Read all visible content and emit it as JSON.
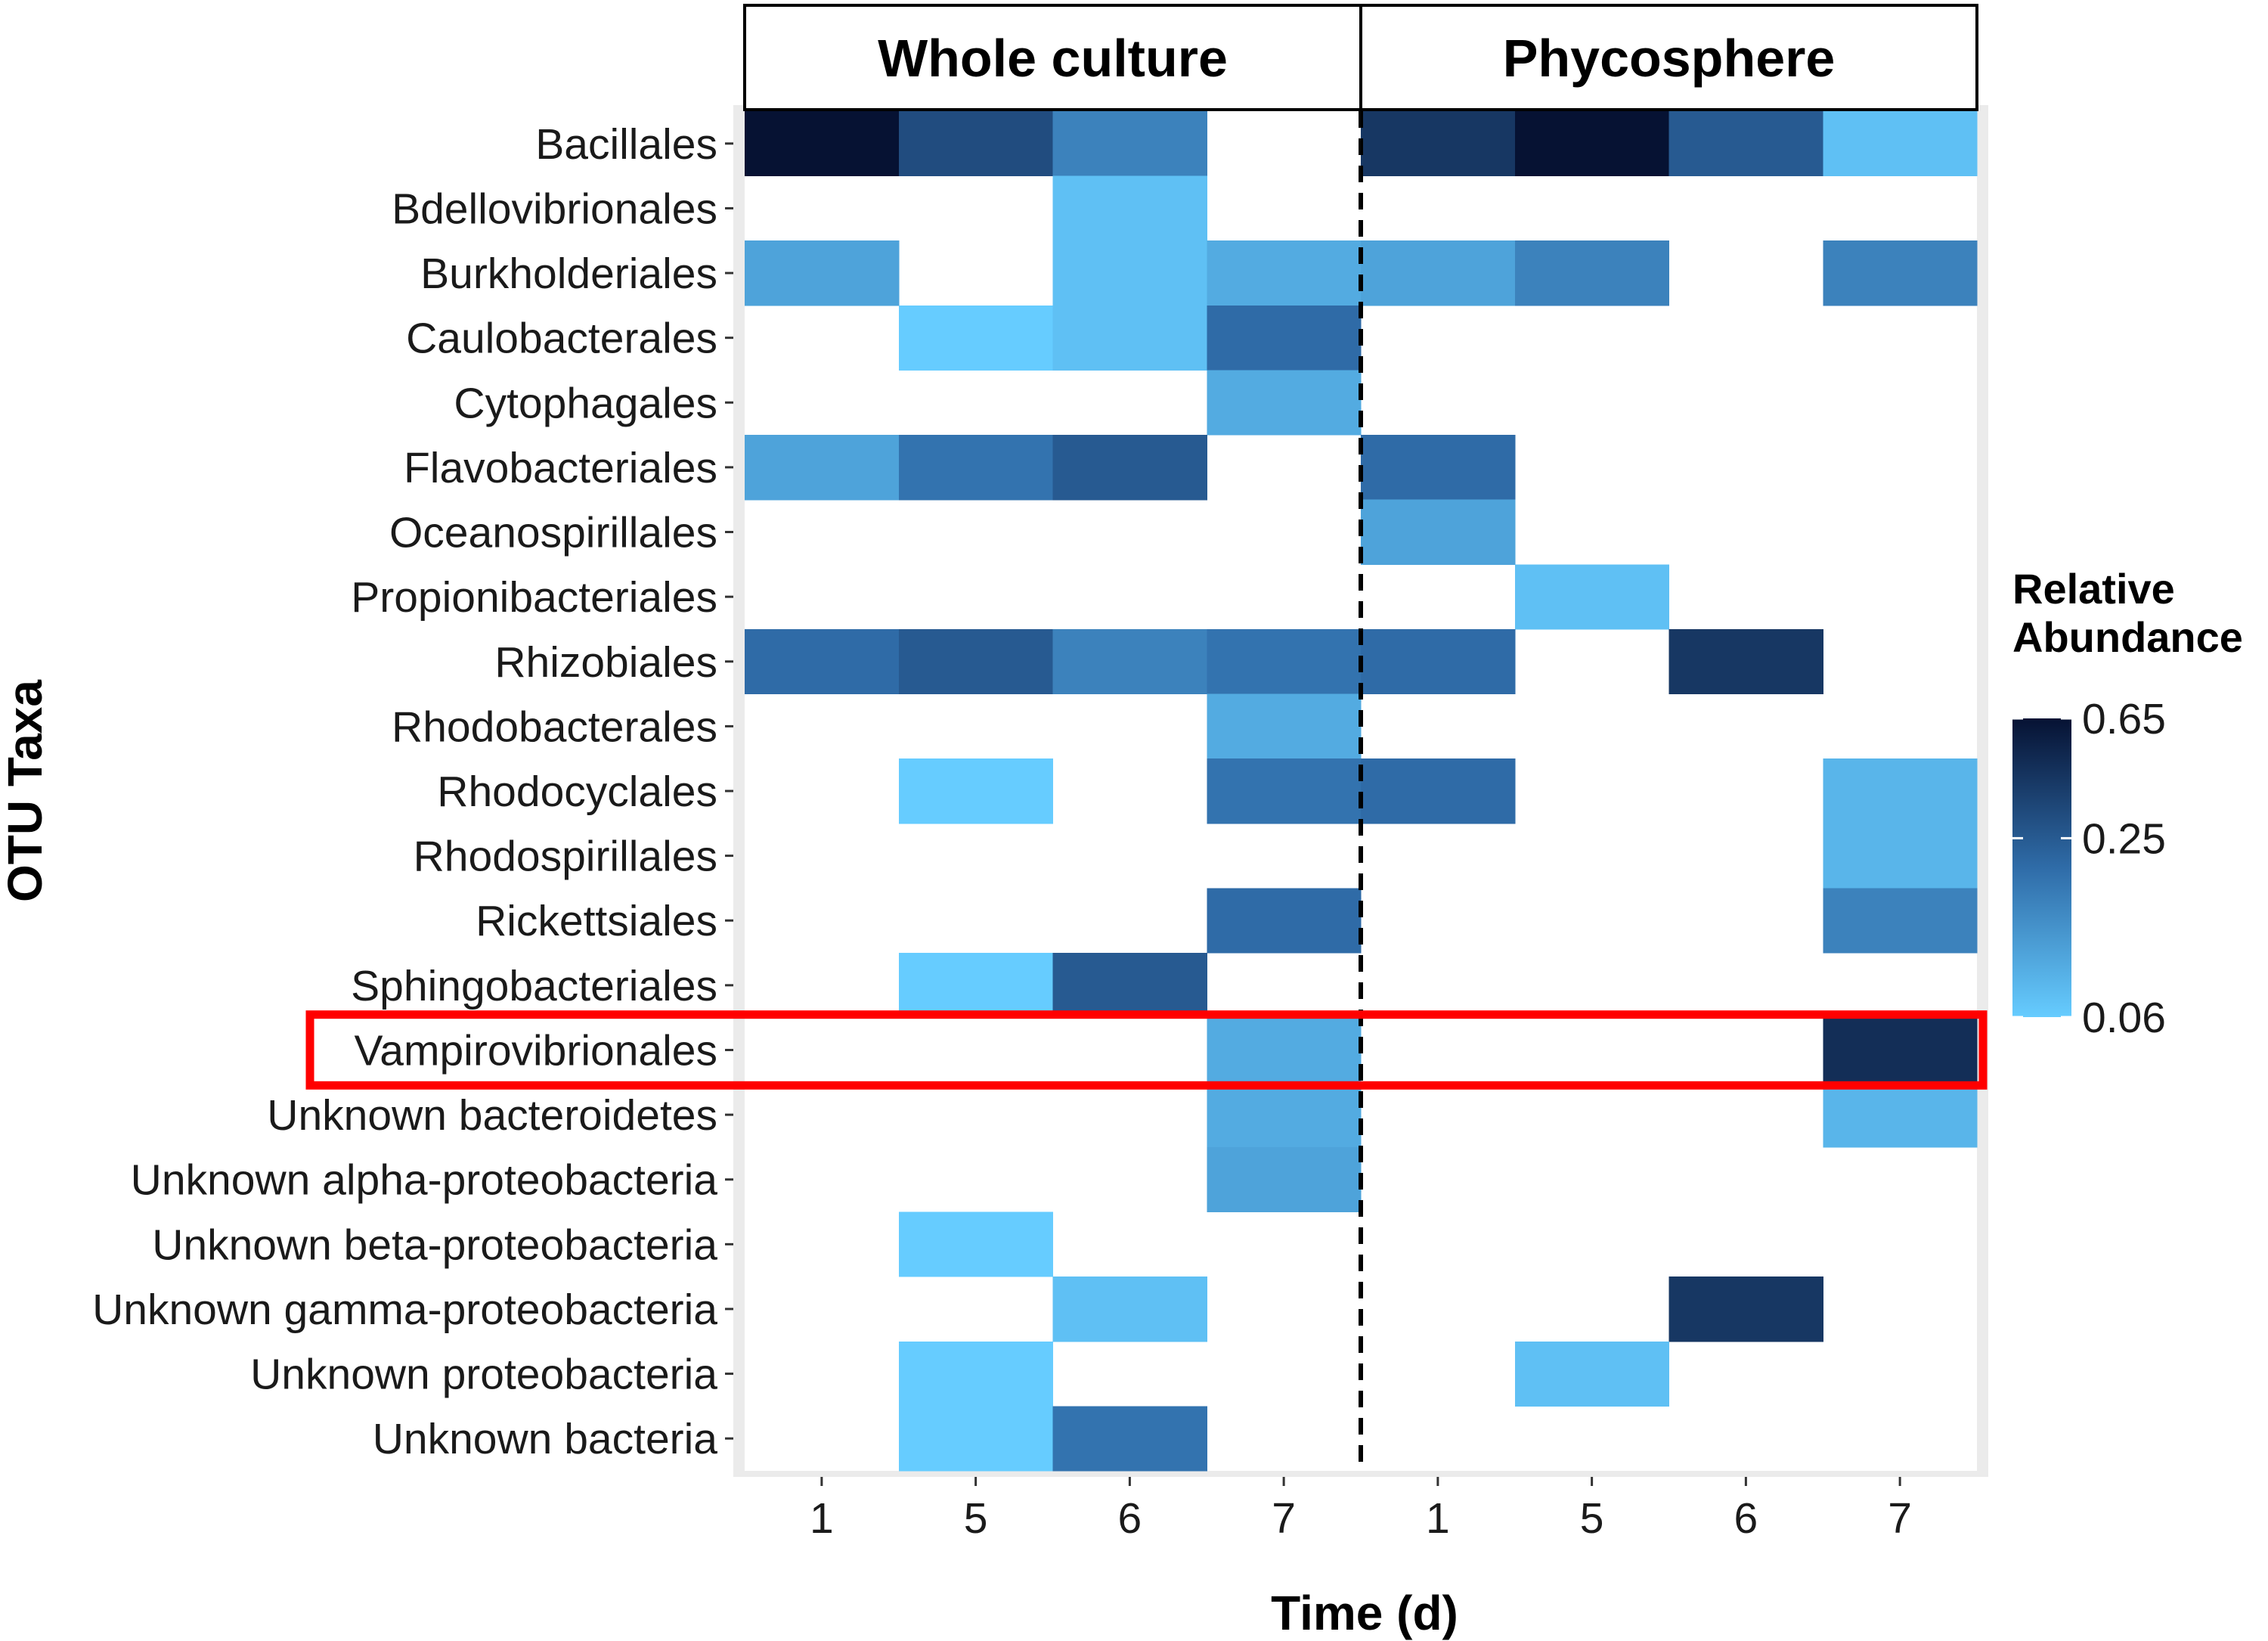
{
  "chart_data": {
    "type": "heatmap",
    "title": "",
    "panels": [
      "Whole culture",
      "Phycosphere"
    ],
    "xlabel": "Time (d)",
    "ylabel": "OTU Taxa",
    "x_ticks": [
      "1",
      "5",
      "6",
      "7",
      "1",
      "5",
      "6",
      "7"
    ],
    "rows": [
      "Bacillales",
      "Bdellovibrionales",
      "Burkholderiales",
      "Caulobacterales",
      "Cytophagales",
      "Flavobacteriales",
      "Oceanospirillales",
      "Propionibacteriales",
      "Rhizobiales",
      "Rhodobacterales",
      "Rhodocyclales",
      "Rhodospirillales",
      "Rickettsiales",
      "Sphingobacteriales",
      "Vampirovibrionales",
      "Unknown bacteroidetes",
      "Unknown alpha-proteobacteria",
      "Unknown beta-proteobacteria",
      "Unknown gamma-proteobacteria",
      "Unknown proteobacteria",
      "Unknown bacteria"
    ],
    "values": [
      [
        0.65,
        0.3,
        0.15,
        null,
        0.4,
        0.65,
        0.25,
        0.07
      ],
      [
        null,
        null,
        0.07,
        null,
        null,
        null,
        null,
        null
      ],
      [
        0.1,
        null,
        0.07,
        0.09,
        0.1,
        0.15,
        null,
        0.15
      ],
      [
        null,
        0.06,
        0.07,
        0.2,
        null,
        null,
        null,
        null
      ],
      [
        null,
        null,
        null,
        0.09,
        null,
        null,
        null,
        null
      ],
      [
        0.1,
        0.18,
        0.25,
        null,
        0.2,
        null,
        null,
        null
      ],
      [
        null,
        null,
        null,
        null,
        0.1,
        null,
        null,
        null
      ],
      [
        null,
        null,
        null,
        null,
        null,
        0.07,
        null,
        null
      ],
      [
        0.2,
        0.25,
        0.15,
        0.18,
        0.2,
        null,
        0.4,
        null
      ],
      [
        null,
        null,
        null,
        0.09,
        null,
        null,
        null,
        null
      ],
      [
        null,
        0.06,
        null,
        0.18,
        0.2,
        null,
        null,
        0.08
      ],
      [
        null,
        null,
        null,
        null,
        null,
        null,
        null,
        0.08
      ],
      [
        null,
        null,
        null,
        0.2,
        null,
        null,
        null,
        0.15
      ],
      [
        null,
        0.06,
        0.25,
        null,
        null,
        null,
        null,
        null
      ],
      [
        null,
        null,
        null,
        0.09,
        null,
        null,
        null,
        0.45
      ],
      [
        null,
        null,
        null,
        0.09,
        null,
        null,
        null,
        0.08
      ],
      [
        null,
        null,
        null,
        0.1,
        null,
        null,
        null,
        null
      ],
      [
        null,
        0.06,
        null,
        null,
        null,
        null,
        null,
        null
      ],
      [
        null,
        null,
        0.07,
        null,
        null,
        null,
        0.4,
        null
      ],
      [
        null,
        0.06,
        null,
        null,
        null,
        0.07,
        null,
        null
      ],
      [
        null,
        0.06,
        0.18,
        null,
        null,
        null,
        null,
        null
      ]
    ],
    "color_scale": {
      "title": "Relative Abundance",
      "scale": "log",
      "ticks": [
        0.65,
        0.25,
        0.06
      ],
      "tick_labels": [
        "0.65",
        "0.25",
        "0.06"
      ],
      "min": 0.06,
      "max": 0.65,
      "low_color": "#66ccff",
      "mid_color": "#2f6ca8",
      "high_color": "#061233"
    },
    "highlight": {
      "row": "Vampirovibrionales",
      "color": "#ff0000"
    },
    "separator": {
      "between_columns": [
        3,
        4
      ],
      "style": "dashed"
    },
    "grid": false
  }
}
